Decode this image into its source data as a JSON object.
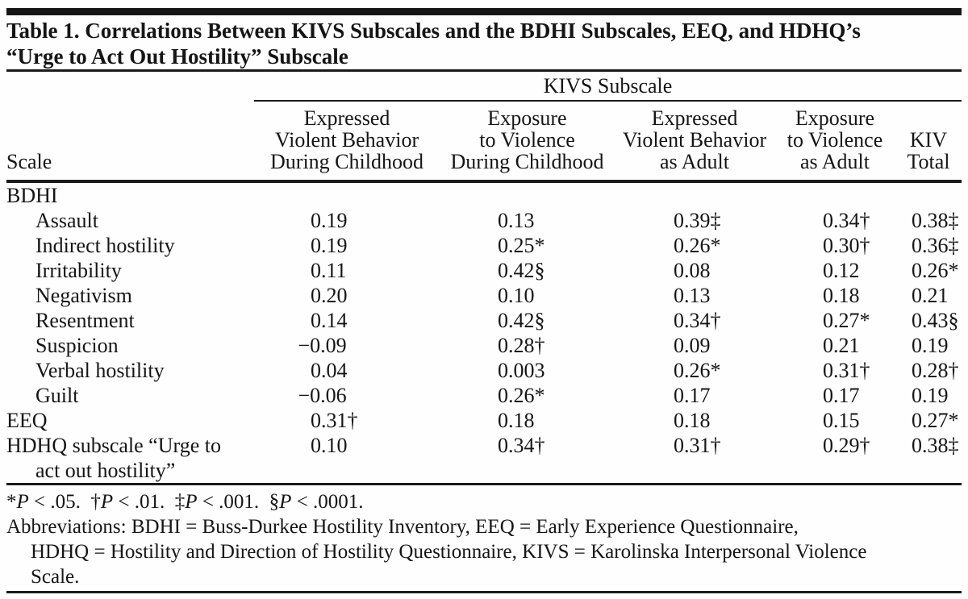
{
  "title": {
    "line1": "Table 1. Correlations Between KIVS Subscales and the BDHI Subscales, EEQ, and HDHQ’s",
    "line2": "“Urge to Act Out Hostility” Subscale"
  },
  "table": {
    "spanner_header": "KIVS Subscale",
    "stub_header": "Scale",
    "columns": [
      "Expressed\nViolent Behavior\nDuring Childhood",
      "Exposure\nto Violence\nDuring Childhood",
      "Expressed\nViolent Behavior\nas Adult",
      "Exposure\nto Violence\nas Adult",
      "KIV\nTotal"
    ],
    "rows": [
      {
        "label": "BDHI",
        "indent": false,
        "values": [
          "",
          "",
          "",
          "",
          ""
        ]
      },
      {
        "label": "Assault",
        "indent": true,
        "values": [
          "0.19",
          "0.13",
          "0.39‡",
          "0.34†",
          "0.38‡"
        ]
      },
      {
        "label": "Indirect hostility",
        "indent": true,
        "values": [
          "0.19",
          "0.25*",
          "0.26*",
          "0.30†",
          "0.36‡"
        ]
      },
      {
        "label": "Irritability",
        "indent": true,
        "values": [
          "0.11",
          "0.42§",
          "0.08",
          "0.12",
          "0.26*"
        ]
      },
      {
        "label": "Negativism",
        "indent": true,
        "values": [
          "0.20",
          "0.10",
          "0.13",
          "0.18",
          "0.21"
        ]
      },
      {
        "label": "Resentment",
        "indent": true,
        "values": [
          "0.14",
          "0.42§",
          "0.34†",
          "0.27*",
          "0.43§"
        ]
      },
      {
        "label": "Suspicion",
        "indent": true,
        "values": [
          "−0.09",
          "0.28†",
          "0.09",
          "0.21",
          "0.19"
        ]
      },
      {
        "label": "Verbal hostility",
        "indent": true,
        "values": [
          "0.04",
          "0.003",
          "0.26*",
          "0.31†",
          "0.28†"
        ]
      },
      {
        "label": "Guilt",
        "indent": true,
        "values": [
          "−0.06",
          "0.26*",
          "0.17",
          "0.17",
          "0.19"
        ]
      },
      {
        "label": "EEQ",
        "indent": false,
        "values": [
          "0.31†",
          "0.18",
          "0.18",
          "0.15",
          "0.27*"
        ]
      },
      {
        "label": "HDHQ subscale “Urge to\nact out hostility”",
        "indent": false,
        "values": [
          "0.10",
          "0.34†",
          "0.31†",
          "0.29†",
          "0.38‡"
        ]
      }
    ]
  },
  "footnotes": {
    "significance": [
      {
        "marker": "*",
        "p": "P",
        "condition": "< .05."
      },
      {
        "marker": "†",
        "p": "P",
        "condition": "< .01."
      },
      {
        "marker": "‡",
        "p": "P",
        "condition": "< .001."
      },
      {
        "marker": "§",
        "p": "P",
        "condition": "< .0001."
      }
    ],
    "abbreviation_lines": [
      "Abbreviations: BDHI = Buss-Durkee Hostility Inventory, EEQ = Early Experience Questionnaire,",
      "HDHQ = Hostility and Direction of Hostility Questionnaire, KIVS = Karolinska Interpersonal Violence",
      "Scale."
    ]
  }
}
